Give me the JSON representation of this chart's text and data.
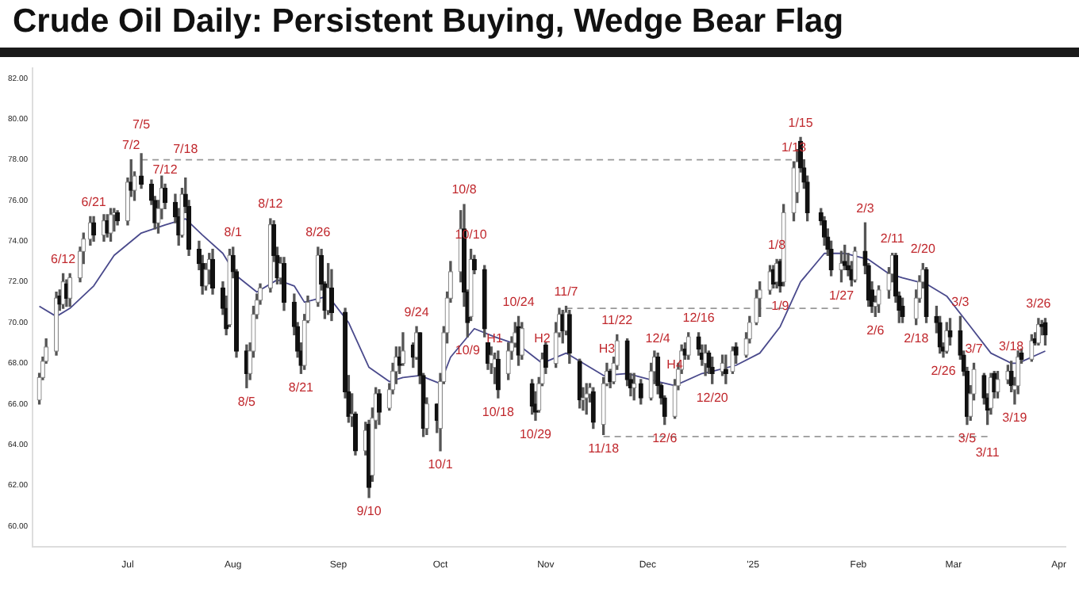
{
  "chart_data": {
    "type": "candlestick",
    "title": "Crude Oil Daily: Persistent Buying, Wedge Bear Flag",
    "x": [
      "2024-06-05",
      "2024-06-06",
      "2024-06-07",
      "2024-06-10",
      "2024-06-11",
      "2024-06-12",
      "2024-06-13",
      "2024-06-14",
      "2024-06-17",
      "2024-06-18",
      "2024-06-20",
      "2024-06-21",
      "2024-06-24",
      "2024-06-25",
      "2024-06-26",
      "2024-06-27",
      "2024-06-28",
      "2024-07-01",
      "2024-07-02",
      "2024-07-03",
      "2024-07-05",
      "2024-07-08",
      "2024-07-09",
      "2024-07-10",
      "2024-07-11",
      "2024-07-12",
      "2024-07-15",
      "2024-07-16",
      "2024-07-17",
      "2024-07-18",
      "2024-07-19",
      "2024-07-22",
      "2024-07-23",
      "2024-07-24",
      "2024-07-25",
      "2024-07-26",
      "2024-07-29",
      "2024-07-30",
      "2024-07-31",
      "2024-08-01",
      "2024-08-02",
      "2024-08-05",
      "2024-08-06",
      "2024-08-07",
      "2024-08-08",
      "2024-08-09",
      "2024-08-12",
      "2024-08-13",
      "2024-08-14",
      "2024-08-15",
      "2024-08-16",
      "2024-08-19",
      "2024-08-20",
      "2024-08-21",
      "2024-08-22",
      "2024-08-23",
      "2024-08-26",
      "2024-08-27",
      "2024-08-28",
      "2024-08-29",
      "2024-08-30",
      "2024-09-03",
      "2024-09-04",
      "2024-09-05",
      "2024-09-06",
      "2024-09-09",
      "2024-09-10",
      "2024-09-11",
      "2024-09-12",
      "2024-09-13",
      "2024-09-16",
      "2024-09-17",
      "2024-09-18",
      "2024-09-19",
      "2024-09-20",
      "2024-09-23",
      "2024-09-24",
      "2024-09-25",
      "2024-09-26",
      "2024-09-27",
      "2024-09-30",
      "2024-10-01",
      "2024-10-02",
      "2024-10-03",
      "2024-10-04",
      "2024-10-07",
      "2024-10-08",
      "2024-10-09",
      "2024-10-10",
      "2024-10-11",
      "2024-10-14",
      "2024-10-15",
      "2024-10-16",
      "2024-10-17",
      "2024-10-18",
      "2024-10-21",
      "2024-10-22",
      "2024-10-23",
      "2024-10-24",
      "2024-10-25",
      "2024-10-28",
      "2024-10-29",
      "2024-10-30",
      "2024-10-31",
      "2024-11-01",
      "2024-11-04",
      "2024-11-05",
      "2024-11-06",
      "2024-11-07",
      "2024-11-08",
      "2024-11-11",
      "2024-11-12",
      "2024-11-13",
      "2024-11-14",
      "2024-11-15",
      "2024-11-18",
      "2024-11-19",
      "2024-11-20",
      "2024-11-21",
      "2024-11-22",
      "2024-11-25",
      "2024-11-26",
      "2024-11-27",
      "2024-11-29",
      "2024-12-02",
      "2024-12-03",
      "2024-12-04",
      "2024-12-05",
      "2024-12-06",
      "2024-12-09",
      "2024-12-10",
      "2024-12-11",
      "2024-12-12",
      "2024-12-13",
      "2024-12-16",
      "2024-12-17",
      "2024-12-18",
      "2024-12-19",
      "2024-12-20",
      "2024-12-23",
      "2024-12-24",
      "2024-12-26",
      "2024-12-27",
      "2024-12-30",
      "2024-12-31",
      "2025-01-02",
      "2025-01-03",
      "2025-01-06",
      "2025-01-07",
      "2025-01-08",
      "2025-01-09",
      "2025-01-10",
      "2025-01-13",
      "2025-01-14",
      "2025-01-15",
      "2025-01-16",
      "2025-01-17",
      "2025-01-21",
      "2025-01-22",
      "2025-01-23",
      "2025-01-24",
      "2025-01-27",
      "2025-01-28",
      "2025-01-29",
      "2025-01-30",
      "2025-01-31",
      "2025-02-03",
      "2025-02-04",
      "2025-02-05",
      "2025-02-06",
      "2025-02-07",
      "2025-02-10",
      "2025-02-11",
      "2025-02-12",
      "2025-02-13",
      "2025-02-14",
      "2025-02-18",
      "2025-02-19",
      "2025-02-20",
      "2025-02-21",
      "2025-02-24",
      "2025-02-25",
      "2025-02-26",
      "2025-02-27",
      "2025-02-28",
      "2025-03-03",
      "2025-03-04",
      "2025-03-05",
      "2025-03-06",
      "2025-03-07",
      "2025-03-10",
      "2025-03-11",
      "2025-03-12",
      "2025-03-13",
      "2025-03-14",
      "2025-03-17",
      "2025-03-18",
      "2025-03-19",
      "2025-03-20",
      "2025-03-21",
      "2025-03-24",
      "2025-03-25",
      "2025-03-26",
      "2025-03-27",
      "2025-03-28"
    ],
    "ohlc": [
      [
        66.2,
        67.5,
        66.0,
        67.3
      ],
      [
        67.3,
        68.3,
        67.2,
        68.1
      ],
      [
        68.1,
        69.2,
        68.0,
        68.8
      ],
      [
        68.6,
        71.5,
        68.4,
        71.2
      ],
      [
        71.3,
        71.6,
        70.6,
        70.9
      ],
      [
        70.9,
        72.4,
        70.7,
        72.0
      ],
      [
        71.9,
        72.1,
        70.8,
        71.2
      ],
      [
        71.2,
        72.4,
        70.8,
        72.2
      ],
      [
        72.2,
        73.7,
        72.0,
        73.5
      ],
      [
        73.5,
        74.4,
        72.9,
        74.1
      ],
      [
        74.1,
        75.2,
        73.8,
        74.9
      ],
      [
        74.9,
        75.2,
        74.0,
        74.3
      ],
      [
        74.3,
        75.3,
        74.0,
        75.0
      ],
      [
        75.0,
        75.3,
        74.2,
        74.4
      ],
      [
        74.4,
        75.6,
        74.0,
        75.3
      ],
      [
        75.3,
        75.6,
        74.5,
        75.4
      ],
      [
        75.4,
        75.5,
        74.8,
        75.0
      ],
      [
        75.0,
        77.1,
        74.8,
        76.9
      ],
      [
        76.9,
        78.0,
        76.2,
        76.5
      ],
      [
        76.5,
        77.4,
        76.0,
        77.2
      ],
      [
        77.2,
        78.3,
        76.6,
        76.8
      ],
      [
        76.8,
        77.0,
        75.8,
        76.0
      ],
      [
        76.0,
        76.2,
        74.6,
        74.9
      ],
      [
        74.9,
        76.0,
        74.4,
        75.6
      ],
      [
        75.6,
        77.2,
        75.1,
        76.6
      ],
      [
        76.6,
        76.8,
        75.6,
        75.9
      ],
      [
        75.9,
        76.3,
        74.9,
        75.2
      ],
      [
        75.2,
        75.6,
        73.8,
        74.3
      ],
      [
        74.3,
        76.6,
        74.2,
        76.3
      ],
      [
        76.3,
        77.1,
        75.4,
        75.7
      ],
      [
        75.7,
        76.0,
        73.3,
        73.6
      ],
      [
        73.6,
        74.0,
        72.6,
        72.9
      ],
      [
        72.9,
        73.3,
        71.4,
        71.8
      ],
      [
        71.8,
        72.9,
        71.6,
        72.6
      ],
      [
        72.6,
        73.4,
        71.9,
        73.1
      ],
      [
        73.1,
        73.6,
        71.4,
        71.7
      ],
      [
        71.7,
        72.0,
        70.4,
        70.7
      ],
      [
        70.7,
        71.3,
        69.4,
        69.7
      ],
      [
        69.9,
        73.6,
        69.8,
        73.3
      ],
      [
        73.3,
        73.7,
        72.2,
        72.5
      ],
      [
        72.5,
        72.6,
        68.3,
        68.6
      ],
      [
        68.6,
        68.9,
        66.8,
        67.5
      ],
      [
        67.5,
        69.0,
        67.2,
        68.6
      ],
      [
        68.6,
        70.8,
        68.3,
        70.4
      ],
      [
        70.4,
        71.4,
        70.2,
        71.1
      ],
      [
        71.1,
        71.9,
        70.9,
        71.7
      ],
      [
        71.7,
        75.1,
        71.5,
        74.8
      ],
      [
        74.8,
        75.0,
        73.0,
        73.3
      ],
      [
        73.3,
        73.7,
        71.9,
        72.2
      ],
      [
        72.2,
        73.2,
        71.9,
        72.9
      ],
      [
        72.9,
        73.2,
        70.6,
        71.0
      ],
      [
        71.0,
        71.4,
        69.4,
        69.8
      ],
      [
        69.8,
        70.0,
        68.3,
        68.6
      ],
      [
        68.6,
        69.0,
        67.5,
        67.9
      ],
      [
        67.9,
        70.4,
        67.7,
        70.1
      ],
      [
        70.1,
        71.3,
        70.0,
        71.0
      ],
      [
        71.0,
        73.7,
        70.8,
        73.3
      ],
      [
        73.3,
        73.6,
        71.6,
        71.9
      ],
      [
        71.9,
        72.0,
        70.2,
        70.6
      ],
      [
        70.6,
        72.9,
        70.4,
        71.7
      ],
      [
        71.7,
        72.6,
        70.1,
        70.5
      ],
      [
        70.5,
        70.7,
        66.3,
        66.6
      ],
      [
        66.6,
        67.4,
        65.1,
        65.4
      ],
      [
        65.4,
        66.5,
        64.9,
        65.5
      ],
      [
        65.5,
        65.6,
        63.5,
        63.7
      ],
      [
        63.7,
        65.1,
        63.5,
        64.7
      ],
      [
        65.0,
        65.2,
        61.4,
        61.9
      ],
      [
        62.5,
        65.8,
        62.2,
        65.3
      ],
      [
        65.2,
        66.8,
        64.8,
        66.5
      ],
      [
        66.5,
        66.7,
        65.0,
        65.6
      ],
      [
        65.8,
        67.0,
        65.7,
        66.7
      ],
      [
        66.7,
        68.0,
        66.5,
        67.6
      ],
      [
        67.6,
        68.8,
        67.0,
        68.3
      ],
      [
        68.3,
        68.8,
        67.5,
        67.9
      ],
      [
        68.0,
        69.5,
        67.9,
        68.6
      ],
      [
        68.9,
        69.0,
        67.8,
        68.3
      ],
      [
        68.3,
        69.8,
        68.2,
        69.5
      ],
      [
        69.5,
        69.5,
        67.0,
        67.4
      ],
      [
        67.4,
        67.5,
        64.4,
        64.8
      ],
      [
        64.8,
        66.3,
        64.5,
        66.0
      ],
      [
        66.0,
        66.0,
        64.6,
        65.2
      ],
      [
        64.8,
        67.5,
        63.7,
        67.1
      ],
      [
        67.1,
        69.8,
        67.0,
        69.5
      ],
      [
        69.5,
        71.5,
        69.0,
        71.2
      ],
      [
        71.2,
        73.0,
        71.0,
        72.5
      ],
      [
        72.5,
        75.5,
        72.0,
        74.6
      ],
      [
        74.6,
        75.8,
        70.8,
        71.5
      ],
      [
        71.5,
        71.6,
        69.3,
        70.0
      ],
      [
        70.3,
        73.6,
        70.1,
        73.1
      ],
      [
        73.1,
        73.3,
        72.4,
        72.6
      ],
      [
        72.6,
        72.8,
        69.3,
        69.7
      ],
      [
        69.0,
        69.0,
        67.7,
        68.0
      ],
      [
        68.0,
        68.8,
        67.5,
        68.4
      ],
      [
        67.8,
        68.5,
        67.0,
        68.2
      ],
      [
        68.2,
        68.6,
        66.3,
        66.7
      ],
      [
        67.5,
        69.0,
        67.2,
        68.6
      ],
      [
        68.6,
        69.3,
        68.2,
        69.0
      ],
      [
        69.0,
        70.0,
        68.8,
        69.5
      ],
      [
        69.8,
        70.3,
        67.9,
        68.4
      ],
      [
        68.4,
        70.0,
        68.2,
        69.7
      ],
      [
        67.0,
        67.2,
        65.5,
        65.9
      ],
      [
        66.0,
        66.6,
        65.2,
        65.6
      ],
      [
        65.7,
        67.3,
        65.6,
        67.0
      ],
      [
        67.0,
        68.5,
        66.9,
        68.2
      ],
      [
        68.9,
        69.0,
        67.5,
        67.8
      ],
      [
        68.0,
        70.0,
        67.8,
        69.5
      ],
      [
        69.5,
        70.7,
        69.3,
        70.4
      ],
      [
        70.4,
        70.6,
        69.0,
        69.6
      ],
      [
        69.6,
        70.8,
        69.4,
        70.5
      ],
      [
        70.4,
        70.6,
        68.0,
        68.5
      ],
      [
        68.1,
        68.2,
        65.8,
        66.2
      ],
      [
        66.2,
        66.8,
        65.7,
        66.3
      ],
      [
        66.3,
        67.0,
        65.5,
        66.5
      ],
      [
        66.5,
        67.0,
        66.1,
        66.8
      ],
      [
        66.6,
        66.8,
        64.8,
        65.1
      ],
      [
        65.0,
        67.3,
        64.5,
        67.0
      ],
      [
        67.0,
        68.0,
        66.9,
        67.6
      ],
      [
        67.6,
        67.7,
        66.8,
        67.1
      ],
      [
        67.1,
        68.3,
        67.0,
        68.0
      ],
      [
        67.9,
        69.4,
        67.7,
        69.1
      ],
      [
        69.1,
        69.2,
        66.9,
        67.2
      ],
      [
        67.2,
        67.5,
        66.4,
        66.8
      ],
      [
        66.8,
        67.5,
        66.2,
        67.0
      ],
      [
        67.0,
        67.2,
        66.0,
        66.3
      ],
      [
        66.3,
        68.0,
        66.2,
        67.6
      ],
      [
        67.6,
        68.6,
        67.0,
        68.3
      ],
      [
        68.3,
        68.5,
        66.5,
        66.9
      ],
      [
        66.9,
        67.0,
        66.0,
        66.3
      ],
      [
        66.3,
        66.4,
        65.0,
        65.4
      ],
      [
        65.4,
        67.2,
        65.3,
        66.9
      ],
      [
        66.9,
        68.0,
        66.7,
        67.7
      ],
      [
        67.7,
        68.9,
        67.5,
        68.6
      ],
      [
        68.7,
        69.0,
        68.2,
        68.4
      ],
      [
        68.4,
        69.5,
        68.2,
        69.3
      ],
      [
        69.3,
        69.5,
        68.4,
        68.7
      ],
      [
        68.5,
        68.9,
        67.9,
        68.2
      ],
      [
        68.0,
        68.9,
        67.4,
        68.5
      ],
      [
        68.5,
        68.6,
        67.5,
        67.8
      ],
      [
        67.8,
        68.3,
        67.0,
        67.5
      ],
      [
        67.6,
        68.4,
        67.4,
        68.0
      ],
      [
        67.7,
        68.4,
        67.0,
        67.5
      ],
      [
        67.6,
        68.8,
        67.5,
        68.6
      ],
      [
        68.8,
        69.0,
        68.0,
        68.4
      ],
      [
        68.4,
        69.5,
        68.3,
        69.2
      ],
      [
        69.2,
        70.3,
        69.0,
        70.0
      ],
      [
        70.0,
        71.6,
        69.9,
        71.2
      ],
      [
        71.2,
        72.0,
        70.3,
        71.6
      ],
      [
        71.6,
        72.8,
        71.4,
        72.5
      ],
      [
        72.6,
        72.8,
        71.7,
        71.9
      ],
      [
        72.0,
        73.1,
        71.7,
        72.9
      ],
      [
        73.0,
        73.1,
        71.5,
        71.8
      ],
      [
        72.0,
        75.8,
        71.8,
        75.4
      ],
      [
        75.4,
        77.9,
        75.0,
        77.6
      ],
      [
        76.4,
        78.5,
        75.9,
        77.9
      ],
      [
        78.9,
        79.1,
        77.4,
        77.6
      ],
      [
        77.6,
        78.0,
        76.6,
        76.9
      ],
      [
        76.9,
        77.2,
        75.0,
        75.4
      ],
      [
        75.4,
        75.6,
        74.8,
        75.0
      ],
      [
        75.0,
        75.2,
        73.8,
        74.2
      ],
      [
        74.2,
        74.6,
        73.3,
        73.6
      ],
      [
        73.6,
        74.0,
        72.3,
        72.6
      ],
      [
        72.6,
        73.5,
        72.0,
        72.9
      ],
      [
        73.0,
        73.8,
        72.6,
        72.8
      ],
      [
        72.8,
        73.4,
        72.3,
        72.6
      ],
      [
        72.6,
        73.0,
        71.8,
        72.1
      ],
      [
        72.1,
        73.7,
        72.0,
        73.5
      ],
      [
        73.5,
        74.9,
        72.4,
        72.8
      ],
      [
        72.8,
        72.9,
        70.8,
        71.1
      ],
      [
        71.6,
        72.0,
        70.5,
        70.8
      ],
      [
        70.8,
        71.3,
        70.3,
        71.0
      ],
      [
        70.9,
        71.8,
        70.5,
        71.6
      ],
      [
        71.6,
        72.7,
        71.2,
        72.4
      ],
      [
        72.4,
        73.4,
        72.0,
        73.3
      ],
      [
        73.3,
        73.4,
        71.0,
        71.3
      ],
      [
        71.3,
        71.5,
        70.0,
        70.6
      ],
      [
        70.8,
        71.2,
        70.0,
        70.3
      ],
      [
        70.2,
        71.6,
        69.9,
        71.2
      ],
      [
        71.2,
        72.3,
        71.0,
        72.0
      ],
      [
        72.0,
        72.9,
        71.7,
        72.6
      ],
      [
        72.6,
        72.7,
        70.0,
        70.3
      ],
      [
        70.3,
        70.8,
        69.5,
        70.0
      ],
      [
        70.0,
        70.3,
        68.5,
        68.8
      ],
      [
        68.8,
        69.0,
        68.3,
        68.6
      ],
      [
        68.6,
        70.0,
        68.5,
        69.6
      ],
      [
        69.6,
        70.2,
        68.9,
        69.3
      ],
      [
        69.6,
        70.3,
        68.2,
        68.4
      ],
      [
        68.4,
        68.6,
        67.4,
        67.6
      ],
      [
        67.6,
        67.8,
        65.0,
        65.4
      ],
      [
        65.4,
        66.9,
        65.2,
        66.5
      ],
      [
        66.5,
        68.0,
        66.2,
        67.7
      ],
      [
        67.4,
        67.5,
        66.0,
        66.3
      ],
      [
        66.3,
        66.5,
        65.0,
        65.7
      ],
      [
        65.8,
        67.5,
        65.5,
        67.3
      ],
      [
        67.5,
        67.6,
        66.3,
        66.6
      ],
      [
        66.6,
        67.6,
        66.3,
        67.2
      ],
      [
        67.2,
        67.9,
        67.0,
        67.6
      ],
      [
        67.6,
        68.1,
        66.6,
        66.9
      ],
      [
        66.7,
        67.3,
        66.0,
        66.9
      ],
      [
        66.9,
        68.6,
        66.5,
        68.3
      ],
      [
        68.5,
        68.7,
        68.0,
        68.2
      ],
      [
        68.2,
        69.4,
        68.1,
        69.1
      ],
      [
        69.2,
        69.5,
        68.9,
        69.0
      ],
      [
        69.0,
        70.2,
        68.9,
        69.9
      ],
      [
        69.9,
        70.1,
        69.4,
        69.8
      ],
      [
        70.0,
        70.2,
        68.9,
        69.4
      ]
    ],
    "series": [
      {
        "type": "line",
        "color": "#4a4a8c",
        "x": [
          "2024-06-05",
          "2024-06-10",
          "2024-06-14",
          "2024-06-21",
          "2024-06-27",
          "2024-07-05",
          "2024-07-12",
          "2024-07-18",
          "2024-07-23",
          "2024-07-29",
          "2024-08-02",
          "2024-08-08",
          "2024-08-14",
          "2024-08-19",
          "2024-08-22",
          "2024-08-29",
          "2024-09-04",
          "2024-09-10",
          "2024-09-16",
          "2024-09-20",
          "2024-09-25",
          "2024-10-01",
          "2024-10-04",
          "2024-10-11",
          "2024-10-17",
          "2024-10-24",
          "2024-10-31",
          "2024-11-07",
          "2024-11-18",
          "2024-11-25",
          "2024-12-04",
          "2024-12-09",
          "2024-12-17",
          "2024-12-20",
          "2024-12-27",
          "2025-01-03",
          "2025-01-09",
          "2025-01-15",
          "2025-01-22",
          "2025-01-28",
          "2025-02-04",
          "2025-02-10",
          "2025-02-14",
          "2025-02-21",
          "2025-02-27",
          "2025-03-06",
          "2025-03-12",
          "2025-03-18",
          "2025-03-20",
          "2025-03-28"
        ],
        "values": [
          70.8,
          70.3,
          70.7,
          71.8,
          73.3,
          74.4,
          74.8,
          75.1,
          74.3,
          73.4,
          72.3,
          71.5,
          72.1,
          71.8,
          71.0,
          71.3,
          70.0,
          67.8,
          67.1,
          67.3,
          67.4,
          67.0,
          68.3,
          69.7,
          69.3,
          68.9,
          68.0,
          68.5,
          67.4,
          67.5,
          67.1,
          66.9,
          67.5,
          67.6,
          67.9,
          68.5,
          69.8,
          72.0,
          73.4,
          73.4,
          73.1,
          72.4,
          72.2,
          71.9,
          71.3,
          69.8,
          68.5,
          68.0,
          68.0,
          68.6
        ]
      },
      {
        "type": "line",
        "color": "#999999",
        "line_style": "dashed",
        "x": [
          "2024-07-05",
          "2025-01-13"
        ],
        "values": [
          78.0,
          78.0
        ]
      },
      {
        "type": "line",
        "color": "#999999",
        "line_style": "dashed",
        "x": [
          "2024-11-07",
          "2025-01-27"
        ],
        "values": [
          70.7,
          70.7
        ]
      },
      {
        "type": "line",
        "color": "#999999",
        "line_style": "dashed",
        "x": [
          "2024-11-18",
          "2025-03-11"
        ],
        "values": [
          64.4,
          64.4
        ]
      }
    ],
    "xlim": [
      "2024-06-03",
      "2025-04-03"
    ],
    "xticks": [
      {
        "value": "2024-07-01",
        "label": "Jul"
      },
      {
        "value": "2024-08-01",
        "label": "Aug"
      },
      {
        "value": "2024-09-01",
        "label": "Sep"
      },
      {
        "value": "2024-10-01",
        "label": "Oct"
      },
      {
        "value": "2024-11-01",
        "label": "Nov"
      },
      {
        "value": "2024-12-01",
        "label": "Dec"
      },
      {
        "value": "2025-01-01",
        "label": "'25"
      },
      {
        "value": "2025-02-01",
        "label": "Feb"
      },
      {
        "value": "2025-03-01",
        "label": "Mar"
      },
      {
        "value": "2025-04-01",
        "label": "Apr"
      }
    ],
    "ylim": [
      59,
      82.5
    ],
    "yticks": [
      {
        "value": 60,
        "label": "60.00"
      },
      {
        "value": 62,
        "label": "62.00"
      },
      {
        "value": 64,
        "label": "64.00"
      },
      {
        "value": 66,
        "label": "66.00"
      },
      {
        "value": 68,
        "label": "68.00"
      },
      {
        "value": 70,
        "label": "70.00"
      },
      {
        "value": 72,
        "label": "72.00"
      },
      {
        "value": 74,
        "label": "74.00"
      },
      {
        "value": 76,
        "label": "76.00"
      },
      {
        "value": 78,
        "label": "78.00"
      },
      {
        "value": 80,
        "label": "80.00"
      },
      {
        "value": 82,
        "label": "82.00"
      }
    ],
    "annotations": [
      {
        "text": "6/12",
        "x": "2024-06-12",
        "y": 72.4
      },
      {
        "text": "6/21",
        "x": "2024-06-21",
        "y": 75.2
      },
      {
        "text": "7/2",
        "x": "2024-07-02",
        "y": 78.0
      },
      {
        "text": "7/5",
        "x": "2024-07-05",
        "y": 78.3
      },
      {
        "text": "7/12",
        "x": "2024-07-12",
        "y": 76.8
      },
      {
        "text": "7/18",
        "x": "2024-07-18",
        "y": 77.1
      },
      {
        "text": "8/1",
        "x": "2024-08-01",
        "y": 73.7
      },
      {
        "text": "8/5",
        "x": "2024-08-05",
        "y": 66.8
      },
      {
        "text": "8/12",
        "x": "2024-08-12",
        "y": 75.1
      },
      {
        "text": "8/21",
        "x": "2024-08-21",
        "y": 67.5
      },
      {
        "text": "8/26",
        "x": "2024-08-26",
        "y": 73.7
      },
      {
        "text": "9/10",
        "x": "2024-09-10",
        "y": 61.4
      },
      {
        "text": "9/24",
        "x": "2024-09-24",
        "y": 69.8
      },
      {
        "text": "10/1",
        "x": "2024-10-01",
        "y": 63.7
      },
      {
        "text": "10/8",
        "x": "2024-10-08",
        "y": 75.8
      },
      {
        "text": "10/9",
        "x": "2024-10-09",
        "y": 69.3
      },
      {
        "text": "10/10",
        "x": "2024-10-10",
        "y": 73.6
      },
      {
        "text": "10/18",
        "x": "2024-10-18",
        "y": 66.3
      },
      {
        "text": "10/24",
        "x": "2024-10-24",
        "y": 70.3
      },
      {
        "text": "10/29",
        "x": "2024-10-29",
        "y": 65.2
      },
      {
        "text": "H1",
        "x": "2024-10-17",
        "y": 68.5
      },
      {
        "text": "H2",
        "x": "2024-10-31",
        "y": 68.5
      },
      {
        "text": "11/7",
        "x": "2024-11-07",
        "y": 70.8
      },
      {
        "text": "H3",
        "x": "2024-11-19",
        "y": 68.0
      },
      {
        "text": "11/18",
        "x": "2024-11-18",
        "y": 64.5
      },
      {
        "text": "11/22",
        "x": "2024-11-22",
        "y": 69.4
      },
      {
        "text": "12/4",
        "x": "2024-12-04",
        "y": 68.5
      },
      {
        "text": "H4",
        "x": "2024-12-09",
        "y": 67.2
      },
      {
        "text": "12/6",
        "x": "2024-12-06",
        "y": 65.0
      },
      {
        "text": "12/16",
        "x": "2024-12-16",
        "y": 69.5
      },
      {
        "text": "12/20",
        "x": "2024-12-20",
        "y": 67.0
      },
      {
        "text": "1/8",
        "x": "2025-01-08",
        "y": 73.1
      },
      {
        "text": "1/9",
        "x": "2025-01-09",
        "y": 71.5
      },
      {
        "text": "1/13",
        "x": "2025-01-13",
        "y": 77.9
      },
      {
        "text": "1/15",
        "x": "2025-01-15",
        "y": 79.1
      },
      {
        "text": "1/27",
        "x": "2025-01-27",
        "y": 72.0
      },
      {
        "text": "2/3",
        "x": "2025-02-03",
        "y": 74.9
      },
      {
        "text": "2/6",
        "x": "2025-02-06",
        "y": 70.3
      },
      {
        "text": "2/11",
        "x": "2025-02-11",
        "y": 73.4
      },
      {
        "text": "2/18",
        "x": "2025-02-18",
        "y": 69.9
      },
      {
        "text": "2/20",
        "x": "2025-02-20",
        "y": 72.9
      },
      {
        "text": "2/26",
        "x": "2025-02-26",
        "y": 68.3
      },
      {
        "text": "3/3",
        "x": "2025-03-03",
        "y": 70.3
      },
      {
        "text": "3/5",
        "x": "2025-03-05",
        "y": 65.0
      },
      {
        "text": "3/7",
        "x": "2025-03-07",
        "y": 68.0
      },
      {
        "text": "3/11",
        "x": "2025-03-11",
        "y": 65.0
      },
      {
        "text": "3/18",
        "x": "2025-03-18",
        "y": 68.1
      },
      {
        "text": "3/19",
        "x": "2025-03-19",
        "y": 66.0
      },
      {
        "text": "3/26",
        "x": "2025-03-26",
        "y": 70.2
      }
    ]
  }
}
